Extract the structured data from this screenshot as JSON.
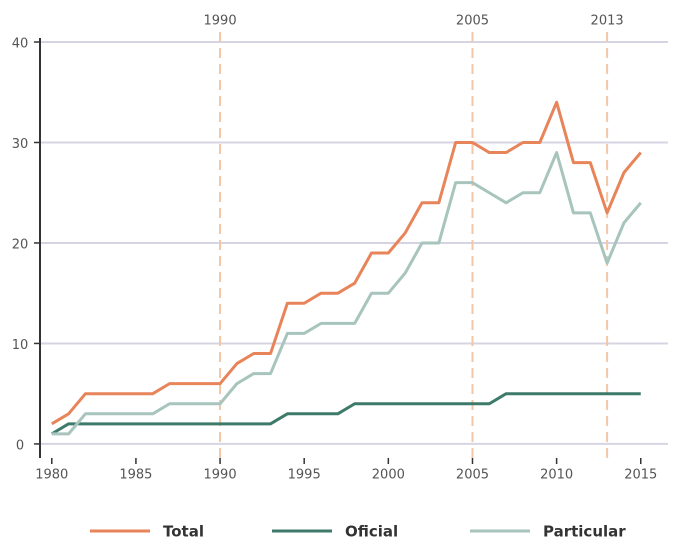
{
  "chart_data": {
    "type": "line",
    "x": [
      1980,
      1981,
      1982,
      1983,
      1984,
      1985,
      1986,
      1987,
      1988,
      1989,
      1990,
      1991,
      1992,
      1993,
      1994,
      1995,
      1996,
      1997,
      1998,
      1999,
      2000,
      2001,
      2002,
      2003,
      2004,
      2005,
      2006,
      2007,
      2008,
      2009,
      2010,
      2011,
      2012,
      2013,
      2014,
      2015
    ],
    "series": [
      {
        "name": "Total",
        "color": "#e8845a",
        "values": [
          2,
          3,
          5,
          5,
          5,
          5,
          5,
          6,
          6,
          6,
          6,
          8,
          9,
          9,
          14,
          14,
          15,
          15,
          16,
          19,
          19,
          21,
          24,
          24,
          30,
          30,
          29,
          29,
          30,
          30,
          34,
          28,
          28,
          23,
          27,
          29
        ]
      },
      {
        "name": "Oficial",
        "color": "#3d7a6a",
        "values": [
          1,
          2,
          2,
          2,
          2,
          2,
          2,
          2,
          2,
          2,
          2,
          2,
          2,
          2,
          3,
          3,
          3,
          3,
          4,
          4,
          4,
          4,
          4,
          4,
          4,
          4,
          4,
          5,
          5,
          5,
          5,
          5,
          5,
          5,
          5,
          5
        ]
      },
      {
        "name": "Particular",
        "color": "#a7c4bd",
        "values": [
          1,
          1,
          3,
          3,
          3,
          3,
          3,
          4,
          4,
          4,
          4,
          6,
          7,
          7,
          11,
          11,
          12,
          12,
          12,
          15,
          15,
          17,
          20,
          20,
          26,
          26,
          25,
          24,
          25,
          25,
          29,
          23,
          23,
          18,
          22,
          24
        ]
      }
    ],
    "xlim": [
      1979.3,
      2016.5
    ],
    "xticks": [
      1980,
      1985,
      1990,
      1995,
      2000,
      2005,
      2010,
      2015
    ],
    "ylim": [
      -1.4,
      40.2
    ],
    "yticks": [
      0,
      10,
      20,
      30,
      40
    ],
    "grid": true,
    "reference_lines": [
      1990,
      2005,
      2013
    ],
    "reference_color": "#f3c6a6"
  }
}
